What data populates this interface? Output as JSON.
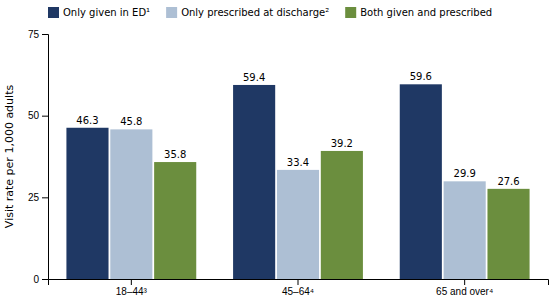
{
  "chart_data": {
    "type": "bar",
    "categories": [
      "18–44³",
      "45–64⁴",
      "65 and over⁴"
    ],
    "series": [
      {
        "name": "Only given in ED¹",
        "color": "#1f3864",
        "values": [
          46.3,
          59.4,
          59.6
        ]
      },
      {
        "name": "Only prescribed at discharge²",
        "color": "#adbfd4",
        "values": [
          45.8,
          33.4,
          29.9
        ]
      },
      {
        "name": "Both given and prescribed",
        "color": "#6b8e3e",
        "values": [
          35.8,
          39.2,
          27.6
        ]
      }
    ],
    "ylabel": "Visit rate per 1,000 adults",
    "ylim": [
      0,
      75
    ],
    "yticks": [
      0,
      25,
      50,
      75
    ],
    "grid": false,
    "legend": "upper-left",
    "data_labels": true
  }
}
